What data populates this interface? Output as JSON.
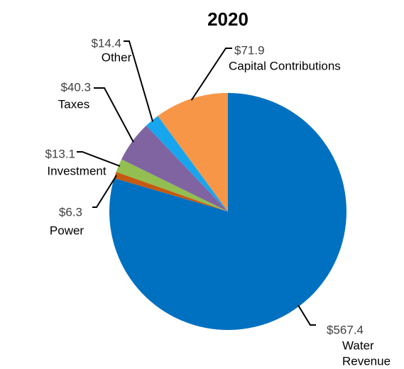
{
  "chart_data": {
    "type": "pie",
    "title": "2020",
    "unit": "$",
    "slices": [
      {
        "category": "Water Revenue",
        "value_label": "$567.4",
        "value": 567.4,
        "color": "#0070C0"
      },
      {
        "category": "Power",
        "value_label": "$6.3",
        "value": 6.3,
        "color": "#C55A11"
      },
      {
        "category": "Investment",
        "value_label": "$13.1",
        "value": 13.1,
        "color": "#92BE52"
      },
      {
        "category": "Taxes",
        "value_label": "$40.3",
        "value": 40.3,
        "color": "#8064A2"
      },
      {
        "category": "Other",
        "value_label": "$14.4",
        "value": 14.4,
        "color": "#17A6EE"
      },
      {
        "category": "Capital Contributions",
        "value_label": "$71.9",
        "value": 71.9,
        "color": "#F79646"
      }
    ],
    "label_lines": {
      "Water Revenue": [
        "Water",
        "Revenue"
      ],
      "Power": [
        "Power"
      ],
      "Investment": [
        "Investment"
      ],
      "Taxes": [
        "Taxes"
      ],
      "Other": [
        "Other"
      ],
      "Capital Contributions": [
        "Capital Contributions"
      ]
    },
    "legend": "none",
    "start_angle_deg": 0,
    "direction": "clockwise"
  }
}
